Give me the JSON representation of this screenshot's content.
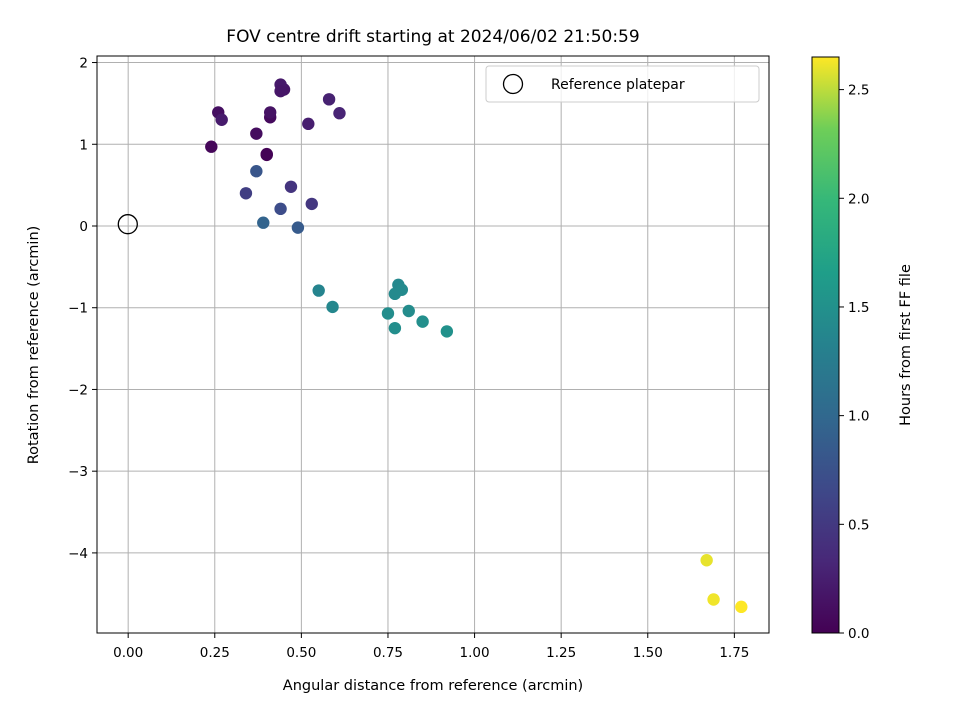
{
  "chart_data": {
    "type": "scatter",
    "title": "FOV centre drift starting at 2024/06/02 21:50:59",
    "xlabel": "Angular distance from reference (arcmin)",
    "ylabel": "Rotation from reference (arcmin)",
    "xlim": [
      -0.09,
      1.85
    ],
    "ylim": [
      -4.98,
      2.08
    ],
    "xticks": [
      "0.00",
      "0.25",
      "0.50",
      "0.75",
      "1.00",
      "1.25",
      "1.50",
      "1.75"
    ],
    "yticks": [
      "2",
      "1",
      "0",
      "−1",
      "−2",
      "−3",
      "−4"
    ],
    "grid": true,
    "legend": {
      "placement": "top-right",
      "entries": [
        "Reference platepar"
      ]
    },
    "reference_point": {
      "x": 0.0,
      "y": 0.0
    },
    "colorbar": {
      "label": "Hours from first FF file",
      "colormap": "viridis",
      "range": [
        0.0,
        2.65
      ],
      "ticks": [
        "0.0",
        "0.5",
        "1.0",
        "1.5",
        "2.0",
        "2.5"
      ]
    },
    "points": [
      {
        "x": 0.4,
        "y": 0.87,
        "c": 0.0
      },
      {
        "x": 0.4,
        "y": 0.88,
        "c": 0.02
      },
      {
        "x": 0.24,
        "y": 0.97,
        "c": 0.05
      },
      {
        "x": 0.41,
        "y": 1.33,
        "c": 0.08
      },
      {
        "x": 0.37,
        "y": 1.13,
        "c": 0.1
      },
      {
        "x": 0.26,
        "y": 1.39,
        "c": 0.12
      },
      {
        "x": 0.41,
        "y": 1.39,
        "c": 0.15
      },
      {
        "x": 0.45,
        "y": 1.67,
        "c": 0.17
      },
      {
        "x": 0.44,
        "y": 1.73,
        "c": 0.2
      },
      {
        "x": 0.44,
        "y": 1.65,
        "c": 0.18
      },
      {
        "x": 0.27,
        "y": 1.3,
        "c": 0.22
      },
      {
        "x": 0.52,
        "y": 1.25,
        "c": 0.25
      },
      {
        "x": 0.58,
        "y": 1.55,
        "c": 0.28
      },
      {
        "x": 0.61,
        "y": 1.38,
        "c": 0.3
      },
      {
        "x": 0.47,
        "y": 0.48,
        "c": 0.45
      },
      {
        "x": 0.53,
        "y": 0.27,
        "c": 0.48
      },
      {
        "x": 0.34,
        "y": 0.4,
        "c": 0.55
      },
      {
        "x": 0.44,
        "y": 0.21,
        "c": 0.7
      },
      {
        "x": 0.37,
        "y": 0.67,
        "c": 0.8
      },
      {
        "x": 0.49,
        "y": -0.02,
        "c": 0.85
      },
      {
        "x": 0.39,
        "y": 0.04,
        "c": 0.95
      },
      {
        "x": 0.55,
        "y": -0.79,
        "c": 1.35
      },
      {
        "x": 0.59,
        "y": -0.99,
        "c": 1.38
      },
      {
        "x": 0.78,
        "y": -0.72,
        "c": 1.4
      },
      {
        "x": 0.79,
        "y": -0.78,
        "c": 1.42
      },
      {
        "x": 0.77,
        "y": -0.83,
        "c": 1.42
      },
      {
        "x": 0.75,
        "y": -1.07,
        "c": 1.45
      },
      {
        "x": 0.81,
        "y": -1.04,
        "c": 1.44
      },
      {
        "x": 0.77,
        "y": -1.25,
        "c": 1.47
      },
      {
        "x": 0.85,
        "y": -1.17,
        "c": 1.48
      },
      {
        "x": 0.92,
        "y": -1.29,
        "c": 1.5
      },
      {
        "x": 1.67,
        "y": -4.09,
        "c": 2.6
      },
      {
        "x": 1.69,
        "y": -4.57,
        "c": 2.62
      },
      {
        "x": 1.77,
        "y": -4.66,
        "c": 2.65
      }
    ]
  }
}
